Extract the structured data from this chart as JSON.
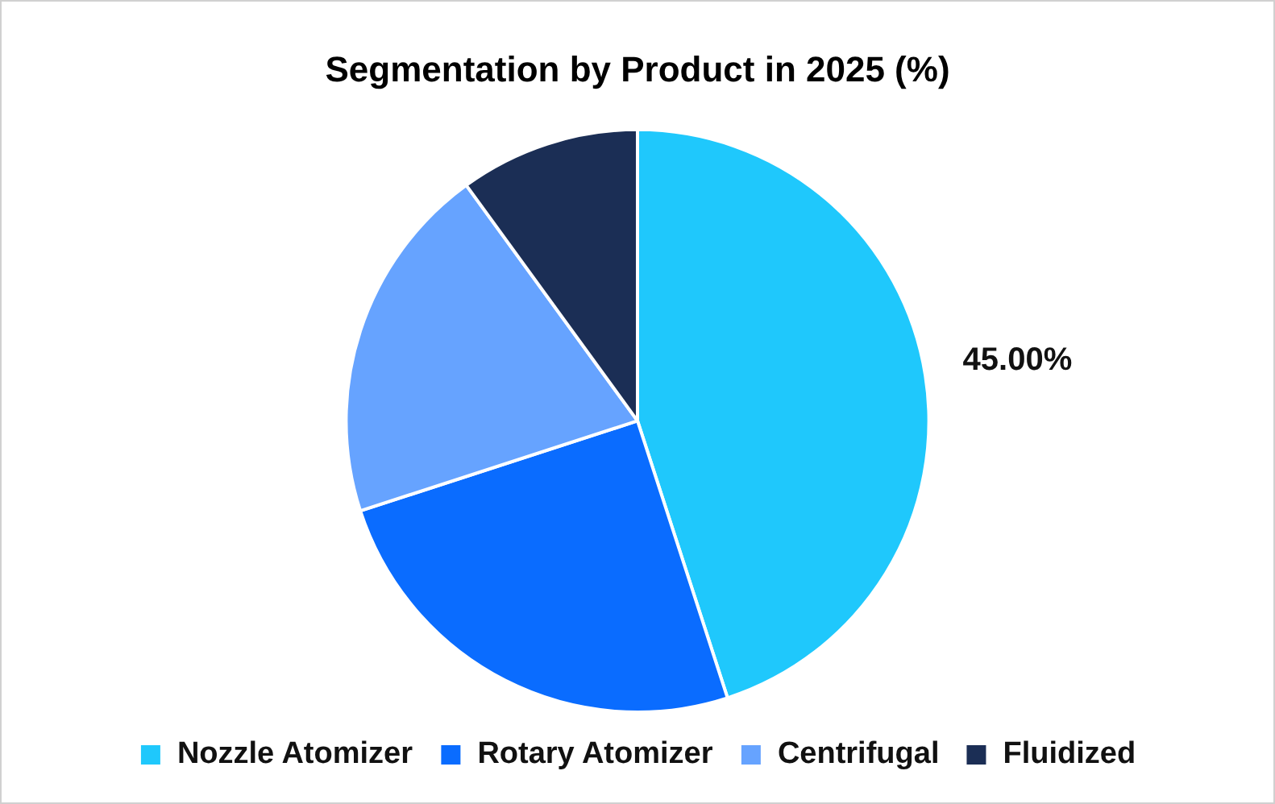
{
  "chart_data": {
    "type": "pie",
    "title": "Segmentation by Product in 2025 (%)",
    "categories": [
      "Nozzle Atomizer",
      "Rotary Atomizer",
      "Centrifugal",
      "Fluidized"
    ],
    "values": [
      45,
      25,
      20,
      10
    ],
    "colors": [
      "#1fc8fc",
      "#0a6cff",
      "#66a3ff",
      "#1b2e55"
    ],
    "value_labels": [
      "45.00%",
      null,
      null,
      null
    ],
    "legend": "bottom"
  }
}
